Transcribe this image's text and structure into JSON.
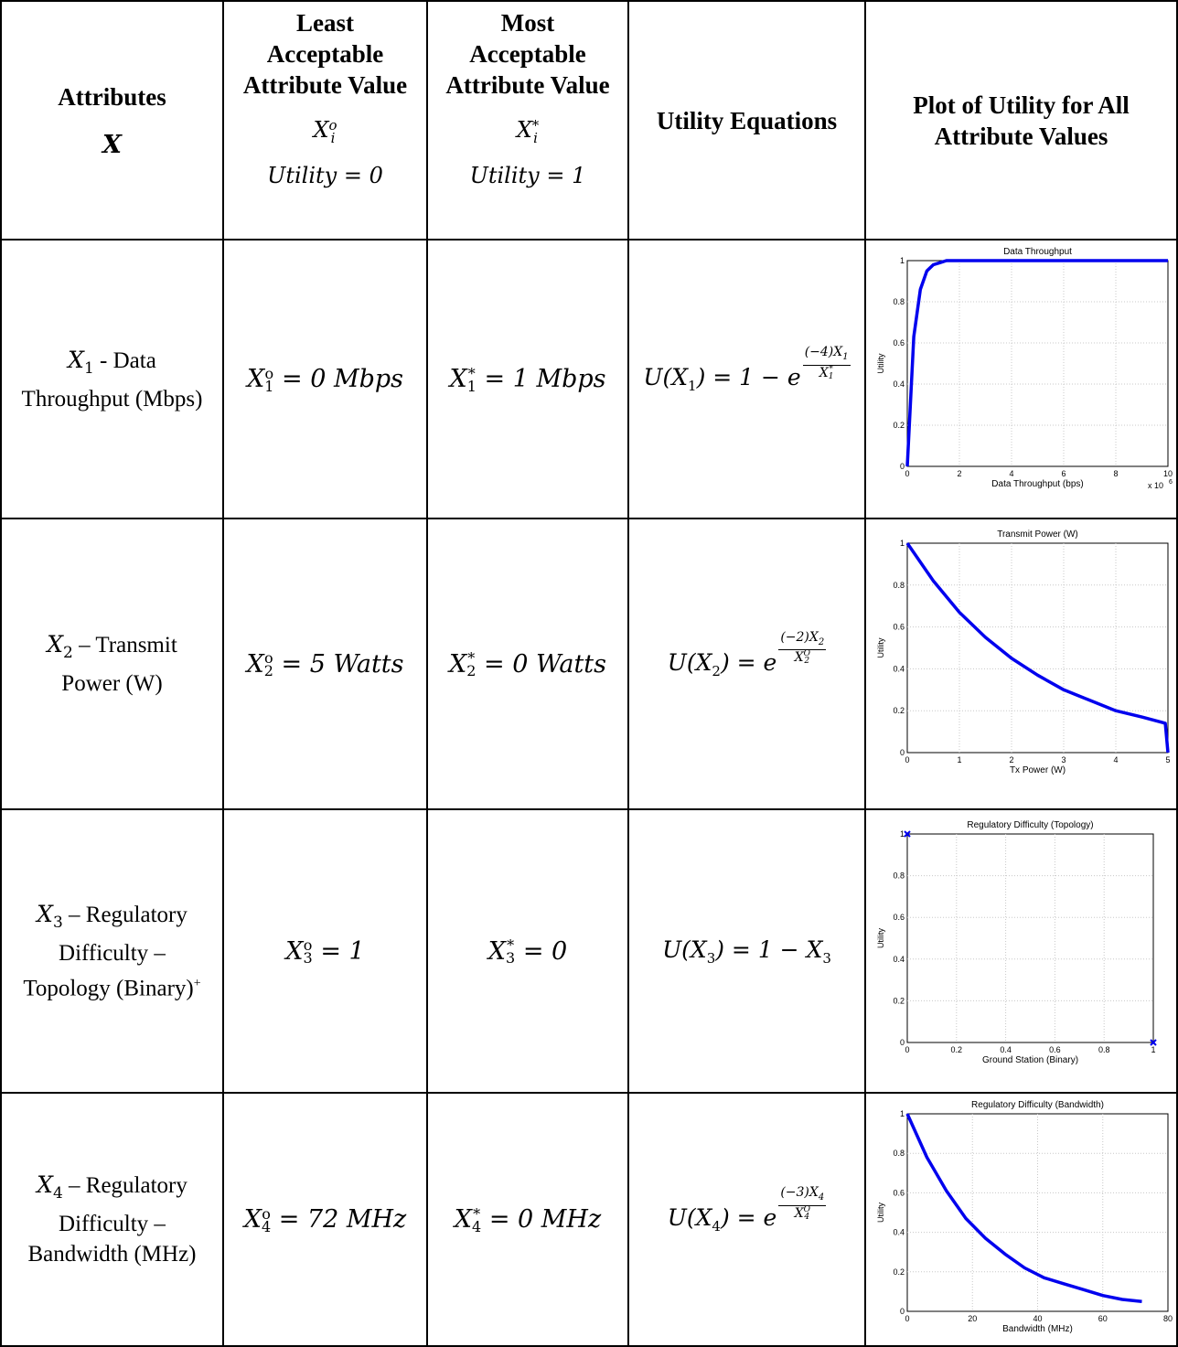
{
  "header": {
    "attributes": "Attributes",
    "attributes_var": "X",
    "least_title": [
      "Least",
      "Acceptable",
      "Attribute Value"
    ],
    "most_title": [
      "Most",
      "Acceptable",
      "Attribute Value"
    ],
    "least_sym": "X",
    "least_sub": "i",
    "least_sup": "o",
    "most_sym": "X",
    "most_sub": "i",
    "most_sup": "*",
    "least_utility": "Utility = 0",
    "most_utility": "Utility = 1",
    "equations": "Utility Equations",
    "plot": "Plot of Utility for All Attribute Values"
  },
  "rows": [
    {
      "attr_var": "X",
      "attr_sub": "1",
      "attr_text": "- Data Throughput (Mbps)",
      "least": "X",
      "least_sub": "1",
      "least_sup": "o",
      "least_val": "= 0 Mbps",
      "most": "X",
      "most_sub": "1",
      "most_sup": "*",
      "most_val": "= 1 Mbps",
      "eq_left": "U(X",
      "eq_sub": "1",
      "eq_mid": ") = 1 − e",
      "eq_num": "(−4)X",
      "eq_num_sub": "1",
      "eq_den": "X",
      "eq_den_sub": "1",
      "eq_den_sup": "*"
    },
    {
      "attr_var": "X",
      "attr_sub": "2",
      "attr_text": "– Transmit Power (W)",
      "least": "X",
      "least_sub": "2",
      "least_sup": "o",
      "least_val": "= 5 Watts",
      "most": "X",
      "most_sub": "2",
      "most_sup": "*",
      "most_val": "= 0 Watts",
      "eq_left": "U(X",
      "eq_sub": "2",
      "eq_mid": ") = e",
      "eq_num": "(−2)X",
      "eq_num_sub": "2",
      "eq_den": "X",
      "eq_den_sub": "2",
      "eq_den_sup": "O"
    },
    {
      "attr_var": "X",
      "attr_sub": "3",
      "attr_text": "– Regulatory Difficulty – Topology (Binary)",
      "attr_plus": "+",
      "least": "X",
      "least_sub": "3",
      "least_sup": "o",
      "least_val": "= 1",
      "most": "X",
      "most_sub": "3",
      "most_sup": "*",
      "most_val": "= 0",
      "eq_text": "U(X",
      "eq_sub": "3",
      "eq_tail": ") = 1 − X",
      "eq_tail_sub": "3"
    },
    {
      "attr_var": "X",
      "attr_sub": "4",
      "attr_text": "– Regulatory Difficulty – Bandwidth (MHz)",
      "least": "X",
      "least_sub": "4",
      "least_sup": "o",
      "least_val": "= 72 MHz",
      "most": "X",
      "most_sub": "4",
      "most_sup": "*",
      "most_val": "= 0 MHz",
      "eq_left": "U(X",
      "eq_sub": "4",
      "eq_mid": ") = e",
      "eq_num": "(−3)X",
      "eq_num_sub": "4",
      "eq_den": "X",
      "eq_den_sub": "4",
      "eq_den_sup": "O"
    }
  ],
  "chart_data": [
    {
      "type": "line",
      "title": "Data Throughput",
      "xlabel": "Data Throughput (bps)",
      "ylabel": "Utility",
      "x_multiplier": "x 10",
      "x_multiplier_exp": "6",
      "xlim": [
        0,
        10
      ],
      "ylim": [
        0,
        1
      ],
      "xticks": [
        "0",
        "2",
        "4",
        "6",
        "8",
        "10"
      ],
      "yticks": [
        "0",
        "0.2",
        "0.4",
        "0.6",
        "0.8",
        "1"
      ],
      "color": "#0000ee",
      "x": [
        0,
        0.25,
        0.5,
        0.75,
        1,
        1.25,
        1.5,
        1.75,
        2,
        2.5,
        3,
        4,
        5,
        6,
        7,
        8,
        9,
        10
      ],
      "values": [
        0,
        0.63,
        0.86,
        0.95,
        0.98,
        0.99,
        1,
        1,
        1,
        1,
        1,
        1,
        1,
        1,
        1,
        1,
        1,
        1
      ],
      "grid": true
    },
    {
      "type": "line",
      "title": "Transmit Power (W)",
      "xlabel": "Tx Power (W)",
      "ylabel": "Utility",
      "xlim": [
        0,
        5
      ],
      "ylim": [
        0,
        1
      ],
      "xticks": [
        "0",
        "1",
        "2",
        "3",
        "4",
        "5"
      ],
      "yticks": [
        "0",
        "0.2",
        "0.4",
        "0.6",
        "0.8",
        "1"
      ],
      "color": "#0000ee",
      "x": [
        0,
        0.5,
        1,
        1.5,
        2,
        2.5,
        3,
        3.5,
        4,
        4.5,
        4.95,
        5
      ],
      "values": [
        1,
        0.82,
        0.67,
        0.55,
        0.45,
        0.37,
        0.3,
        0.25,
        0.2,
        0.17,
        0.14,
        0
      ],
      "grid": true
    },
    {
      "type": "scatter",
      "title": "Regulatory Difficulty (Topology)",
      "xlabel": "Ground Station (Binary)",
      "ylabel": "Utility",
      "xlim": [
        0,
        1
      ],
      "ylim": [
        0,
        1
      ],
      "xticks": [
        "0",
        "0.2",
        "0.4",
        "0.6",
        "0.8",
        "1"
      ],
      "yticks": [
        "0",
        "0.2",
        "0.4",
        "0.6",
        "0.8",
        "1"
      ],
      "color": "#0000ee",
      "x": [
        0,
        1
      ],
      "values": [
        1,
        0
      ],
      "grid": true
    },
    {
      "type": "line",
      "title": "Regulatory Difficulty (Bandwidth)",
      "xlabel": "Bandwidth (MHz)",
      "ylabel": "Utility",
      "xlim": [
        0,
        80
      ],
      "ylim": [
        0,
        1
      ],
      "xticks": [
        "0",
        "20",
        "40",
        "60",
        "80"
      ],
      "yticks": [
        "0",
        "0.2",
        "0.4",
        "0.6",
        "0.8",
        "1"
      ],
      "color": "#0000ee",
      "x": [
        0,
        6,
        12,
        18,
        24,
        30,
        36,
        42,
        48,
        54,
        60,
        66,
        72
      ],
      "values": [
        1,
        0.78,
        0.61,
        0.47,
        0.37,
        0.29,
        0.22,
        0.17,
        0.14,
        0.11,
        0.08,
        0.06,
        0.05
      ],
      "grid": true
    }
  ]
}
